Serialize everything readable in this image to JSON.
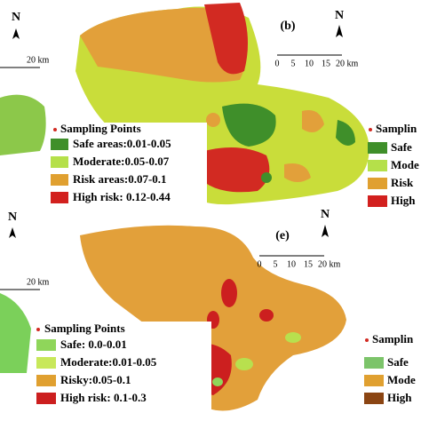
{
  "panels": [
    {
      "label": "(b)",
      "north": "N",
      "left_scale": {
        "north": "N",
        "end": "20 km"
      },
      "scale": [
        "0",
        "5",
        "10",
        "15",
        "20 km"
      ],
      "legend": {
        "title": "Sampling Points",
        "items": [
          "Safe areas:0.01-0.05",
          "Moderate:0.05-0.07",
          "Risk areas:0.07-0.1",
          "High risk: 0.12-0.44"
        ]
      },
      "right_legend": {
        "title": "Samplin",
        "items": [
          "Safe",
          "Mode",
          "Risk",
          "High"
        ]
      }
    },
    {
      "label": "(e)",
      "north": "N",
      "left_scale": {
        "north": "N",
        "end": "20 km"
      },
      "scale": [
        "0",
        "5",
        "10",
        "15",
        "20 km"
      ],
      "legend": {
        "title": "Sampling Points",
        "items": [
          "Safe: 0.0-0.01",
          "Moderate:0.01-0.05",
          "Risky:0.05-0.1",
          "High risk: 0.1-0.3"
        ]
      },
      "right_legend": {
        "title": "Samplin",
        "items": [
          "Safe",
          "Mode",
          "High"
        ]
      }
    }
  ]
}
